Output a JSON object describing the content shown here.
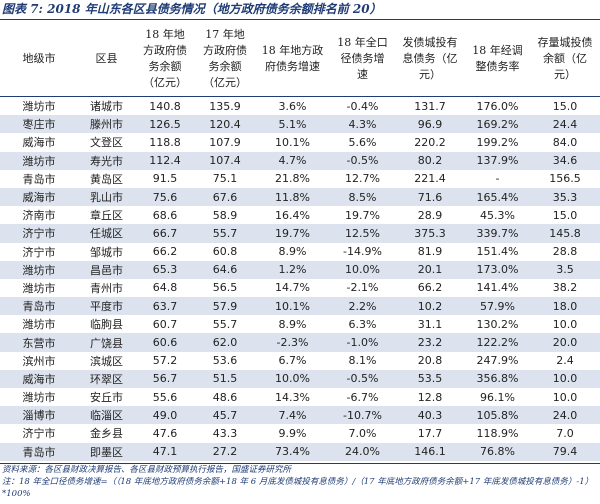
{
  "title": "图表 7:  2018 年山东各区县债务情况（地方政府债务余额排名前 20）",
  "table": {
    "header": [
      "地级市",
      "区县",
      "18 年地方政府债务余额（亿元）",
      "17 年地方政府债务余额（亿元）",
      "18 年地方政府债务增速",
      "18 年全口径债务增速",
      "发债城投有息债务（亿元）",
      "18 年经调整债务率",
      "存量城投债余额（亿元）"
    ],
    "rows": [
      [
        "潍坊市",
        "诸城市",
        "140.8",
        "135.9",
        "3.6%",
        "-0.4%",
        "131.7",
        "176.0%",
        "15.0"
      ],
      [
        "枣庄市",
        "滕州市",
        "126.5",
        "120.4",
        "5.1%",
        "4.3%",
        "96.9",
        "169.2%",
        "24.4"
      ],
      [
        "威海市",
        "文登区",
        "118.8",
        "107.9",
        "10.1%",
        "5.6%",
        "220.2",
        "199.2%",
        "84.0"
      ],
      [
        "潍坊市",
        "寿光市",
        "112.4",
        "107.4",
        "4.7%",
        "-0.5%",
        "80.2",
        "137.9%",
        "34.6"
      ],
      [
        "青岛市",
        "黄岛区",
        "91.5",
        "75.1",
        "21.8%",
        "12.7%",
        "221.4",
        "-",
        "156.5"
      ],
      [
        "威海市",
        "乳山市",
        "75.6",
        "67.6",
        "11.8%",
        "8.5%",
        "71.6",
        "165.4%",
        "35.3"
      ],
      [
        "济南市",
        "章丘区",
        "68.6",
        "58.9",
        "16.4%",
        "19.7%",
        "28.9",
        "45.3%",
        "15.0"
      ],
      [
        "济宁市",
        "任城区",
        "66.7",
        "55.7",
        "19.7%",
        "12.5%",
        "375.3",
        "339.7%",
        "145.8"
      ],
      [
        "济宁市",
        "邹城市",
        "66.2",
        "60.8",
        "8.9%",
        "-14.9%",
        "81.9",
        "151.4%",
        "28.8"
      ],
      [
        "潍坊市",
        "昌邑市",
        "65.3",
        "64.6",
        "1.2%",
        "10.0%",
        "20.1",
        "173.0%",
        "3.5"
      ],
      [
        "潍坊市",
        "青州市",
        "64.8",
        "56.5",
        "14.7%",
        "-2.1%",
        "66.2",
        "141.4%",
        "38.2"
      ],
      [
        "青岛市",
        "平度市",
        "63.7",
        "57.9",
        "10.1%",
        "2.2%",
        "10.2",
        "57.9%",
        "18.0"
      ],
      [
        "潍坊市",
        "临朐县",
        "60.7",
        "55.7",
        "8.9%",
        "6.3%",
        "31.1",
        "130.2%",
        "10.0"
      ],
      [
        "东营市",
        "广饶县",
        "60.6",
        "62.0",
        "-2.3%",
        "-1.0%",
        "23.2",
        "122.2%",
        "20.0"
      ],
      [
        "滨州市",
        "滨城区",
        "57.2",
        "53.6",
        "6.7%",
        "8.1%",
        "20.8",
        "247.9%",
        "2.4"
      ],
      [
        "威海市",
        "环翠区",
        "56.7",
        "51.5",
        "10.0%",
        "-0.5%",
        "53.5",
        "356.8%",
        "10.0"
      ],
      [
        "潍坊市",
        "安丘市",
        "55.6",
        "48.6",
        "14.3%",
        "-6.7%",
        "12.8",
        "96.1%",
        "10.0"
      ],
      [
        "淄博市",
        "临淄区",
        "49.0",
        "45.7",
        "7.4%",
        "-10.7%",
        "40.3",
        "105.8%",
        "24.0"
      ],
      [
        "济宁市",
        "金乡县",
        "47.6",
        "43.3",
        "9.9%",
        "7.0%",
        "17.7",
        "118.9%",
        "7.0"
      ],
      [
        "青岛市",
        "即墨区",
        "47.1",
        "27.2",
        "73.4%",
        "24.0%",
        "146.1",
        "76.8%",
        "79.4"
      ]
    ]
  },
  "footer": {
    "source": "资料来源：各区县财政决算报告、各区县财政预算执行报告，国盛证券研究所",
    "note": "注：18 年全口径债务增速=（（18 年底地方政府债务余额+18 年 6 月底发债城投有息债务）/（17 年底地方政府债务余额+17 年底发债城投有息债务）-1）*100%"
  }
}
